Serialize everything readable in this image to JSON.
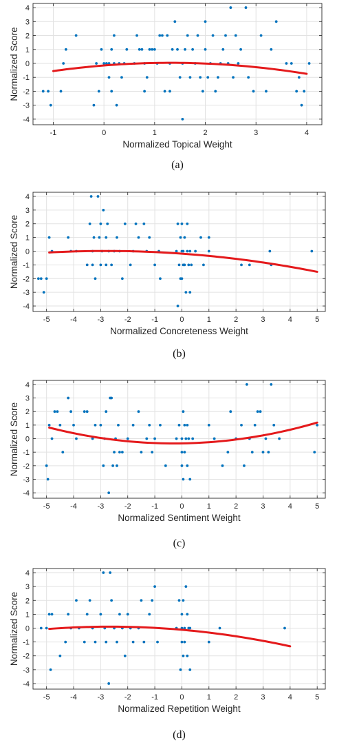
{
  "style": {
    "point_color": "#0072bd",
    "fit_color": "#e41a1c",
    "grid_color": "#e2e2e2",
    "axis_color": "#262626"
  },
  "chart_data": [
    {
      "type": "scatter",
      "caption": "(a)",
      "xlabel": "Normalized Topical Weight",
      "ylabel": "Normalized Score",
      "xlim": [
        -1.4,
        4.3
      ],
      "ylim": [
        -4.4,
        4.3
      ],
      "xticks": [
        -1,
        0,
        1,
        2,
        3,
        4
      ],
      "yticks": [
        -4,
        -3,
        -2,
        -1,
        0,
        1,
        2,
        3,
        4
      ],
      "grid": true,
      "points": [
        [
          -1.2,
          -2
        ],
        [
          -1.1,
          -2
        ],
        [
          -1.05,
          -3
        ],
        [
          -0.85,
          -2
        ],
        [
          -0.8,
          0
        ],
        [
          -0.75,
          1
        ],
        [
          -0.55,
          2
        ],
        [
          -0.2,
          -3
        ],
        [
          -0.15,
          0
        ],
        [
          -0.1,
          -2
        ],
        [
          -0.05,
          1
        ],
        [
          0,
          0
        ],
        [
          0.05,
          0
        ],
        [
          0.1,
          0
        ],
        [
          0.1,
          -1
        ],
        [
          0.15,
          -2
        ],
        [
          0.15,
          1
        ],
        [
          0.2,
          2
        ],
        [
          0.2,
          0
        ],
        [
          0.25,
          -3
        ],
        [
          0.3,
          0
        ],
        [
          0.35,
          -1
        ],
        [
          0.4,
          0
        ],
        [
          0.45,
          1
        ],
        [
          0.6,
          0
        ],
        [
          0.65,
          2
        ],
        [
          0.7,
          1
        ],
        [
          0.75,
          1
        ],
        [
          0.8,
          -2
        ],
        [
          0.8,
          0
        ],
        [
          0.85,
          -1
        ],
        [
          0.9,
          1
        ],
        [
          0.95,
          1
        ],
        [
          1.0,
          1
        ],
        [
          1.05,
          0
        ],
        [
          1.1,
          2
        ],
        [
          1.15,
          2
        ],
        [
          1.2,
          -2
        ],
        [
          1.25,
          2
        ],
        [
          1.3,
          -2
        ],
        [
          1.3,
          0
        ],
        [
          1.35,
          1
        ],
        [
          1.4,
          3
        ],
        [
          1.45,
          1
        ],
        [
          1.5,
          -1
        ],
        [
          1.55,
          0
        ],
        [
          1.55,
          -4
        ],
        [
          1.6,
          1
        ],
        [
          1.65,
          2
        ],
        [
          1.7,
          -1
        ],
        [
          1.75,
          1
        ],
        [
          1.8,
          0
        ],
        [
          1.85,
          2
        ],
        [
          1.9,
          -1
        ],
        [
          1.95,
          -2
        ],
        [
          2.0,
          1
        ],
        [
          2.0,
          3
        ],
        [
          2.05,
          -1
        ],
        [
          2.1,
          0
        ],
        [
          2.15,
          2
        ],
        [
          2.2,
          -2
        ],
        [
          2.25,
          -1
        ],
        [
          2.3,
          0
        ],
        [
          2.35,
          1
        ],
        [
          2.4,
          2
        ],
        [
          2.45,
          0
        ],
        [
          2.5,
          4
        ],
        [
          2.55,
          -1
        ],
        [
          2.6,
          2
        ],
        [
          2.65,
          0
        ],
        [
          2.7,
          1
        ],
        [
          2.8,
          4
        ],
        [
          2.85,
          -1
        ],
        [
          2.95,
          -2
        ],
        [
          3.1,
          2
        ],
        [
          3.2,
          -2
        ],
        [
          3.3,
          1
        ],
        [
          3.4,
          3
        ],
        [
          3.6,
          0
        ],
        [
          3.7,
          0
        ],
        [
          3.8,
          -2
        ],
        [
          3.85,
          -1
        ],
        [
          3.9,
          -3
        ],
        [
          3.95,
          -2
        ],
        [
          4.05,
          0
        ]
      ],
      "fit": {
        "from": -1.0,
        "to": 4.0,
        "coef": [
          -0.15,
          0.29,
          -0.11
        ]
      }
    },
    {
      "type": "scatter",
      "caption": "(b)",
      "xlabel": "Normalized Concreteness Weight",
      "ylabel": "Normalized Score",
      "xlim": [
        -5.5,
        5.3
      ],
      "ylim": [
        -4.4,
        4.3
      ],
      "xticks": [
        -5,
        -4,
        -3,
        -2,
        -1,
        0,
        1,
        2,
        3,
        4,
        5
      ],
      "yticks": [
        -4,
        -3,
        -2,
        -1,
        0,
        1,
        2,
        3,
        4
      ],
      "grid": true,
      "points": [
        [
          -5.3,
          -2
        ],
        [
          -5.2,
          -2
        ],
        [
          -5.1,
          -3
        ],
        [
          -5.0,
          -2
        ],
        [
          -4.9,
          1
        ],
        [
          -4.8,
          0
        ],
        [
          -4.2,
          1
        ],
        [
          -4.1,
          0
        ],
        [
          -3.9,
          0
        ],
        [
          -3.5,
          -1
        ],
        [
          -3.4,
          2
        ],
        [
          -3.35,
          4
        ],
        [
          -3.3,
          -1
        ],
        [
          -3.3,
          0
        ],
        [
          -3.25,
          1
        ],
        [
          -3.2,
          -2
        ],
        [
          -3.1,
          4
        ],
        [
          -3.05,
          1
        ],
        [
          -3.0,
          2
        ],
        [
          -3.0,
          -1
        ],
        [
          -2.95,
          0
        ],
        [
          -2.9,
          3
        ],
        [
          -2.8,
          1
        ],
        [
          -2.8,
          -1
        ],
        [
          -2.75,
          2
        ],
        [
          -2.7,
          0
        ],
        [
          -2.6,
          -1
        ],
        [
          -2.5,
          0
        ],
        [
          -2.4,
          1
        ],
        [
          -2.3,
          0
        ],
        [
          -2.2,
          -2
        ],
        [
          -2.1,
          2
        ],
        [
          -1.9,
          -1
        ],
        [
          -1.8,
          0
        ],
        [
          -1.7,
          2
        ],
        [
          -1.6,
          1
        ],
        [
          -1.4,
          2
        ],
        [
          -1.3,
          0
        ],
        [
          -1.2,
          1
        ],
        [
          -1.0,
          -1
        ],
        [
          -0.85,
          0
        ],
        [
          -0.8,
          -2
        ],
        [
          -0.2,
          0
        ],
        [
          -0.15,
          2
        ],
        [
          -0.1,
          -1
        ],
        [
          -0.05,
          1
        ],
        [
          0,
          0
        ],
        [
          0,
          -2
        ],
        [
          0,
          2
        ],
        [
          0.05,
          -1
        ],
        [
          0.05,
          0
        ],
        [
          0.1,
          1
        ],
        [
          0.1,
          -1
        ],
        [
          0.15,
          -3
        ],
        [
          0.2,
          2
        ],
        [
          0.2,
          0
        ],
        [
          0.25,
          -1
        ],
        [
          0.3,
          0
        ],
        [
          0.3,
          -3
        ],
        [
          0.35,
          -1
        ],
        [
          0.5,
          0
        ],
        [
          0.7,
          1
        ],
        [
          0.8,
          -1
        ],
        [
          1.0,
          0
        ],
        [
          1.0,
          1
        ],
        [
          -0.05,
          -2
        ],
        [
          -0.15,
          -4
        ],
        [
          2.2,
          -1
        ],
        [
          2.5,
          -1
        ],
        [
          3.25,
          0
        ],
        [
          3.3,
          -1
        ],
        [
          4.8,
          0
        ]
      ],
      "fit": {
        "from": -4.9,
        "to": 5.0,
        "coef": [
          -0.18,
          -0.14,
          -0.025
        ]
      }
    },
    {
      "type": "scatter",
      "caption": "(c)",
      "xlabel": "Normalized Sentiment Weight",
      "ylabel": "Normalized Score",
      "xlim": [
        -5.5,
        5.3
      ],
      "ylim": [
        -4.4,
        4.3
      ],
      "xticks": [
        -5,
        -4,
        -3,
        -2,
        -1,
        0,
        1,
        2,
        3,
        4,
        5
      ],
      "yticks": [
        -4,
        -3,
        -2,
        -1,
        0,
        1,
        2,
        3,
        4
      ],
      "grid": true,
      "points": [
        [
          -5.0,
          -2
        ],
        [
          -4.95,
          -3
        ],
        [
          -4.9,
          1
        ],
        [
          -4.8,
          0
        ],
        [
          -4.7,
          2
        ],
        [
          -4.6,
          2
        ],
        [
          -4.5,
          1
        ],
        [
          -4.4,
          -1
        ],
        [
          -4.2,
          3
        ],
        [
          -4.1,
          2
        ],
        [
          -4.0,
          1
        ],
        [
          -3.9,
          0
        ],
        [
          -3.6,
          2
        ],
        [
          -3.5,
          2
        ],
        [
          -3.3,
          0
        ],
        [
          -3.2,
          1
        ],
        [
          -3.0,
          1
        ],
        [
          -2.9,
          -2
        ],
        [
          -2.85,
          0
        ],
        [
          -2.8,
          2
        ],
        [
          -2.7,
          -4
        ],
        [
          -2.65,
          3
        ],
        [
          -2.6,
          3
        ],
        [
          -2.55,
          -2
        ],
        [
          -2.5,
          -1
        ],
        [
          -2.45,
          0
        ],
        [
          -2.4,
          -2
        ],
        [
          -2.35,
          1
        ],
        [
          -2.3,
          -1
        ],
        [
          -2.2,
          -1
        ],
        [
          -2.0,
          0
        ],
        [
          -1.8,
          1
        ],
        [
          -1.6,
          2
        ],
        [
          -1.5,
          -1
        ],
        [
          -1.3,
          0
        ],
        [
          -1.2,
          1
        ],
        [
          -1.1,
          -1
        ],
        [
          -1.0,
          0
        ],
        [
          -0.8,
          1
        ],
        [
          -0.6,
          -2
        ],
        [
          -0.2,
          0
        ],
        [
          -0.1,
          1
        ],
        [
          0,
          0
        ],
        [
          0,
          -1
        ],
        [
          0,
          -2
        ],
        [
          0.05,
          2
        ],
        [
          0.05,
          -3
        ],
        [
          0.1,
          1
        ],
        [
          0.1,
          -1
        ],
        [
          0.15,
          0
        ],
        [
          0.2,
          -2
        ],
        [
          0.2,
          1
        ],
        [
          0.25,
          0
        ],
        [
          0.3,
          -3
        ],
        [
          0.4,
          0
        ],
        [
          1.0,
          1
        ],
        [
          1.2,
          0
        ],
        [
          1.5,
          -2
        ],
        [
          1.7,
          -1
        ],
        [
          1.8,
          2
        ],
        [
          2.0,
          0
        ],
        [
          2.2,
          1
        ],
        [
          2.3,
          -2
        ],
        [
          2.4,
          4
        ],
        [
          2.5,
          0
        ],
        [
          2.6,
          -1
        ],
        [
          2.7,
          1
        ],
        [
          2.8,
          2
        ],
        [
          2.9,
          2
        ],
        [
          3.0,
          -1
        ],
        [
          3.1,
          0
        ],
        [
          3.2,
          -1
        ],
        [
          3.3,
          4
        ],
        [
          3.4,
          1
        ],
        [
          3.6,
          0
        ],
        [
          4.9,
          -1
        ],
        [
          5.0,
          1
        ]
      ],
      "fit": {
        "from": -4.9,
        "to": 5.0,
        "coef": [
          -0.35,
          0.032,
          0.055
        ]
      }
    },
    {
      "type": "scatter",
      "caption": "(d)",
      "xlabel": "Normalized Repetition Weight",
      "ylabel": "Normalized Score",
      "xlim": [
        -5.5,
        5.3
      ],
      "ylim": [
        -4.4,
        4.3
      ],
      "xticks": [
        -5,
        -4,
        -3,
        -2,
        -1,
        0,
        1,
        2,
        3,
        4,
        5
      ],
      "yticks": [
        -4,
        -3,
        -2,
        -1,
        0,
        1,
        2,
        3,
        4
      ],
      "grid": true,
      "points": [
        [
          -5.2,
          0
        ],
        [
          -5.0,
          0
        ],
        [
          -4.9,
          1
        ],
        [
          -4.85,
          -3
        ],
        [
          -4.8,
          1
        ],
        [
          -4.5,
          -2
        ],
        [
          -4.3,
          -1
        ],
        [
          -4.2,
          1
        ],
        [
          -4.1,
          0
        ],
        [
          -3.9,
          2
        ],
        [
          -3.8,
          0
        ],
        [
          -3.6,
          -1
        ],
        [
          -3.5,
          1
        ],
        [
          -3.4,
          2
        ],
        [
          -3.3,
          0
        ],
        [
          -3.2,
          -1
        ],
        [
          -3.0,
          1
        ],
        [
          -2.9,
          4
        ],
        [
          -2.85,
          0
        ],
        [
          -2.8,
          -1
        ],
        [
          -2.7,
          -4
        ],
        [
          -2.65,
          4
        ],
        [
          -2.6,
          2
        ],
        [
          -2.5,
          0
        ],
        [
          -2.4,
          -1
        ],
        [
          -2.3,
          1
        ],
        [
          -2.2,
          0
        ],
        [
          -2.1,
          -2
        ],
        [
          -2.0,
          1
        ],
        [
          -1.9,
          0
        ],
        [
          -1.8,
          -1
        ],
        [
          -1.6,
          0
        ],
        [
          -1.5,
          2
        ],
        [
          -1.4,
          -1
        ],
        [
          -1.2,
          1
        ],
        [
          -1.1,
          2
        ],
        [
          -1.0,
          3
        ],
        [
          -0.9,
          -1
        ],
        [
          -0.2,
          0
        ],
        [
          -0.1,
          2
        ],
        [
          -0.05,
          -3
        ],
        [
          0,
          0
        ],
        [
          0,
          -1
        ],
        [
          0,
          1
        ],
        [
          0.05,
          -2
        ],
        [
          0.05,
          2
        ],
        [
          0.1,
          0
        ],
        [
          0.1,
          -1
        ],
        [
          0.15,
          3
        ],
        [
          0.2,
          -2
        ],
        [
          0.2,
          1
        ],
        [
          0.25,
          0
        ],
        [
          0.3,
          -3
        ],
        [
          0.3,
          0
        ],
        [
          1.0,
          -1
        ],
        [
          1.4,
          0
        ],
        [
          3.8,
          0
        ]
      ],
      "fit": {
        "from": -4.9,
        "to": 4.0,
        "coef": [
          -0.12,
          -0.17,
          -0.032
        ]
      }
    }
  ]
}
